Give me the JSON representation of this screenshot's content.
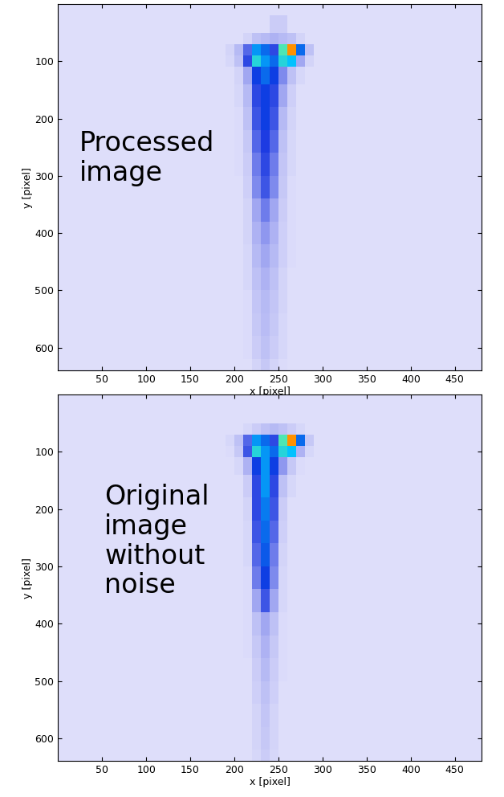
{
  "chart_data": [
    {
      "type": "heatmap",
      "annotation": "Processed\nimage",
      "xlabel": "x [pixel]",
      "ylabel": "y [pixel]",
      "xlim": [
        0,
        480
      ],
      "ylim": [
        640,
        0
      ],
      "xticks": [
        50,
        100,
        150,
        200,
        250,
        300,
        350,
        400,
        450
      ],
      "yticks": [
        100,
        200,
        300,
        400,
        500,
        600
      ],
      "clim": [
        0,
        100
      ],
      "x_edges": [
        190,
        200,
        210,
        220,
        230,
        240,
        250,
        260,
        270,
        280,
        290
      ],
      "y_edges": [
        20,
        50,
        70,
        90,
        110,
        140,
        180,
        220,
        260,
        300,
        340,
        380,
        420,
        460,
        500,
        540,
        580,
        620,
        640
      ],
      "cells": [
        [
          0,
          0,
          0,
          0,
          0,
          5,
          5,
          0,
          0,
          0
        ],
        [
          0,
          0,
          3,
          8,
          10,
          12,
          10,
          8,
          3,
          0
        ],
        [
          3,
          10,
          25,
          45,
          40,
          30,
          60,
          90,
          40,
          8
        ],
        [
          2,
          8,
          30,
          55,
          45,
          40,
          55,
          50,
          15,
          3
        ],
        [
          0,
          3,
          15,
          35,
          40,
          35,
          20,
          8,
          2,
          0
        ],
        [
          0,
          2,
          10,
          30,
          35,
          30,
          15,
          4,
          0,
          0
        ],
        [
          0,
          1,
          8,
          28,
          35,
          28,
          10,
          3,
          0,
          0
        ],
        [
          0,
          1,
          6,
          25,
          32,
          25,
          8,
          2,
          0,
          0
        ],
        [
          0,
          1,
          5,
          22,
          30,
          22,
          7,
          2,
          0,
          0
        ],
        [
          0,
          0,
          4,
          20,
          28,
          20,
          6,
          1,
          0,
          0
        ],
        [
          0,
          0,
          3,
          15,
          22,
          15,
          5,
          1,
          0,
          0
        ],
        [
          0,
          0,
          3,
          12,
          18,
          12,
          4,
          1,
          0,
          0
        ],
        [
          0,
          0,
          2,
          10,
          15,
          10,
          4,
          1,
          0,
          0
        ],
        [
          0,
          0,
          2,
          8,
          12,
          8,
          3,
          0,
          0,
          0
        ],
        [
          0,
          0,
          1,
          7,
          10,
          7,
          3,
          0,
          0,
          0
        ],
        [
          0,
          0,
          1,
          6,
          9,
          6,
          2,
          0,
          0,
          0
        ],
        [
          0,
          0,
          1,
          5,
          8,
          5,
          2,
          0,
          0,
          0
        ],
        [
          0,
          0,
          0,
          3,
          6,
          3,
          1,
          0,
          0,
          0
        ]
      ]
    },
    {
      "type": "heatmap",
      "annotation": "Original\nimage\nwithout\nnoise",
      "xlabel": "x [pixel]",
      "ylabel": "y [pixel]",
      "xlim": [
        0,
        480
      ],
      "ylim": [
        640,
        0
      ],
      "xticks": [
        50,
        100,
        150,
        200,
        250,
        300,
        350,
        400,
        450
      ],
      "yticks": [
        100,
        200,
        300,
        400,
        500,
        600
      ],
      "clim": [
        0,
        100
      ],
      "x_edges": [
        190,
        200,
        210,
        220,
        230,
        240,
        250,
        260,
        270,
        280,
        290
      ],
      "y_edges": [
        20,
        50,
        70,
        90,
        110,
        140,
        180,
        220,
        260,
        300,
        340,
        380,
        420,
        460,
        500,
        540,
        580,
        620,
        640
      ],
      "cells": [
        [
          0,
          0,
          0,
          0,
          0,
          0,
          0,
          0,
          0,
          0
        ],
        [
          0,
          0,
          2,
          5,
          8,
          10,
          8,
          5,
          2,
          0
        ],
        [
          2,
          8,
          25,
          45,
          40,
          30,
          60,
          90,
          40,
          6
        ],
        [
          1,
          6,
          28,
          55,
          45,
          40,
          55,
          50,
          12,
          2
        ],
        [
          0,
          2,
          12,
          35,
          45,
          35,
          18,
          6,
          1,
          0
        ],
        [
          0,
          0,
          5,
          30,
          45,
          30,
          8,
          2,
          0,
          0
        ],
        [
          0,
          0,
          3,
          30,
          42,
          28,
          5,
          0,
          0,
          0
        ],
        [
          0,
          0,
          2,
          28,
          40,
          25,
          4,
          0,
          0,
          0
        ],
        [
          0,
          0,
          2,
          25,
          38,
          22,
          3,
          0,
          0,
          0
        ],
        [
          0,
          0,
          1,
          22,
          35,
          20,
          2,
          0,
          0,
          0
        ],
        [
          0,
          0,
          1,
          15,
          28,
          15,
          2,
          0,
          0,
          0
        ],
        [
          0,
          0,
          1,
          8,
          15,
          8,
          1,
          0,
          0,
          0
        ],
        [
          0,
          0,
          1,
          6,
          12,
          6,
          1,
          0,
          0,
          0
        ],
        [
          0,
          0,
          0,
          5,
          10,
          5,
          1,
          0,
          0,
          0
        ],
        [
          0,
          0,
          0,
          4,
          8,
          4,
          0,
          0,
          0,
          0
        ],
        [
          0,
          0,
          0,
          3,
          7,
          3,
          0,
          0,
          0,
          0
        ],
        [
          0,
          0,
          0,
          3,
          6,
          3,
          0,
          0,
          0,
          0
        ],
        [
          0,
          0,
          0,
          2,
          5,
          2,
          0,
          0,
          0,
          0
        ]
      ]
    }
  ]
}
